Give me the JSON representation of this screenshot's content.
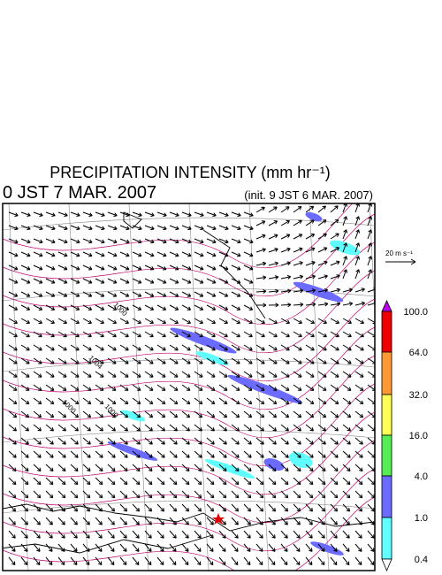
{
  "title": "PRECIPITATION INTENSITY (mm hr⁻¹)",
  "valid_time": "0 JST 7 MAR. 2007",
  "init_time": "(init. 9 JST 6 MAR. 2007)",
  "wind_reference": "20 m s⁻¹",
  "colorbar": {
    "labels": [
      "100.0",
      "64.0",
      "32.0",
      "16.0",
      "4.0",
      "1.0",
      "0.4"
    ]
  },
  "contour_labels": [
    "1000",
    "1004",
    "1000",
    "1000"
  ]
}
